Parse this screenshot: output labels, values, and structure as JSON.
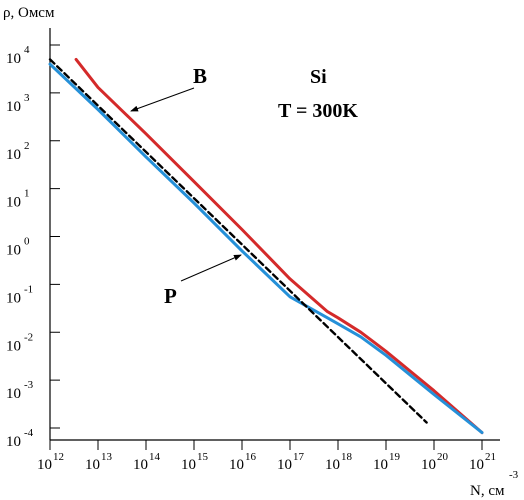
{
  "chart_data": {
    "type": "line",
    "title_lines": [
      "Si",
      "T = 300K"
    ],
    "ylabel": "ρ, Омсм",
    "xlabel": "N, см",
    "xlabel_exp": "-3",
    "x_scale": "log",
    "y_scale": "log",
    "xlim": [
      1000000000000.0,
      1e+21
    ],
    "ylim": [
      0.0001,
      10000.0
    ],
    "x_ticks": [
      {
        "base": "10",
        "exp": "12"
      },
      {
        "base": "10",
        "exp": "13"
      },
      {
        "base": "10",
        "exp": "14"
      },
      {
        "base": "10",
        "exp": "15"
      },
      {
        "base": "10",
        "exp": "16"
      },
      {
        "base": "10",
        "exp": " 17"
      },
      {
        "base": "10",
        "exp": "18"
      },
      {
        "base": "10",
        "exp": "19"
      },
      {
        "base": "10",
        "exp": "20"
      },
      {
        "base": "10",
        "exp": "21"
      }
    ],
    "y_ticks": [
      {
        "base": "10",
        "exp": "4"
      },
      {
        "base": "10",
        "exp": "3"
      },
      {
        "base": "10",
        "exp": "2"
      },
      {
        "base": "10",
        "exp": "1"
      },
      {
        "base": "10",
        "exp": "0"
      },
      {
        "base": "10",
        "exp": "-1"
      },
      {
        "base": "10",
        "exp": "-2"
      },
      {
        "base": "10",
        "exp": "-3"
      },
      {
        "base": "10",
        "exp": "-4"
      }
    ],
    "grid": false,
    "series": [
      {
        "name": "B",
        "color": "#d42a2a",
        "label_color": "#d0206e",
        "x": [
          3500000000000.0,
          10000000000000.0,
          100000000000000.0,
          1000000000000000.0,
          1e+16,
          1e+17,
          6e+17,
          1e+18,
          3e+18,
          1e+19,
          1e+20,
          1e+21
        ],
        "y": [
          5000,
          1300,
          140,
          14,
          1.4,
          0.13,
          0.027,
          0.02,
          0.01,
          0.004,
          0.0006,
          8e-05
        ]
      },
      {
        "name": "P",
        "color": "#2590d8",
        "label_color": "#2590d8",
        "x": [
          1000000000000.0,
          10000000000000.0,
          100000000000000.0,
          1000000000000000.0,
          1e+16,
          1e+17,
          6e+17,
          1e+18,
          3e+18,
          1e+19,
          1e+20,
          1e+21
        ],
        "y": [
          4000,
          450,
          46,
          5,
          0.5,
          0.055,
          0.02,
          0.015,
          0.008,
          0.0033,
          0.0005,
          8e-05
        ]
      },
      {
        "name": "",
        "style": "dashed",
        "color": "#000000",
        "x": [
          1000000000000.0,
          7e+19
        ],
        "y": [
          5000,
          0.00013
        ]
      }
    ],
    "annotations": [
      {
        "text": "B",
        "points_to": "B"
      },
      {
        "text": "P",
        "points_to": "P"
      }
    ]
  }
}
